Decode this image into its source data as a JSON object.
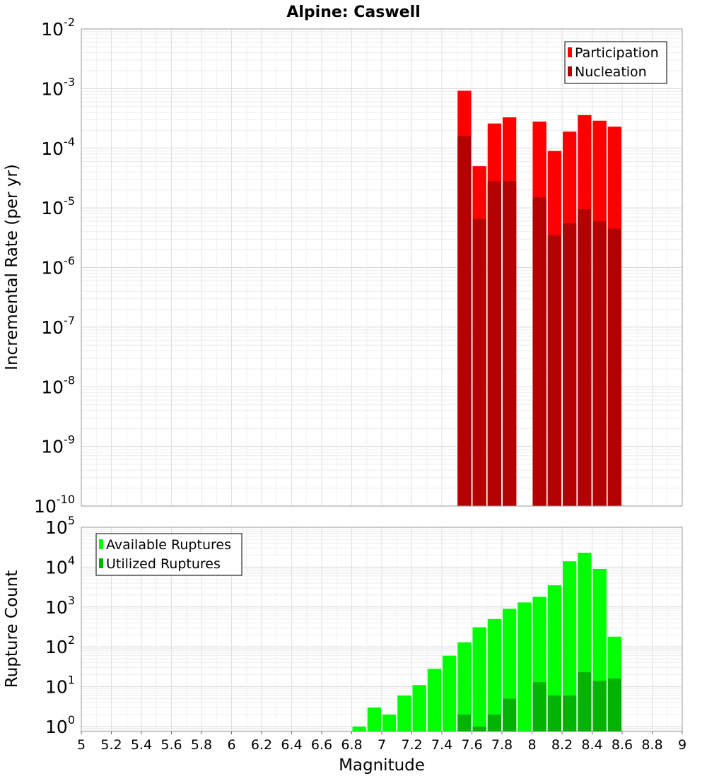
{
  "chart_data": [
    {
      "type": "bar",
      "title": "Alpine: Caswell",
      "ylabel": "Incremental Rate (per yr)",
      "xlabel": "",
      "y_scale": "log",
      "ylim": [
        1e-10,
        0.01
      ],
      "xlim": [
        5,
        9
      ],
      "bar_width": 0.1,
      "legend_position": "top-right",
      "y_ticks": [
        {
          "base": "10",
          "exp": "-10",
          "value": 1e-10
        },
        {
          "base": "10",
          "exp": "-9",
          "value": 1e-09
        },
        {
          "base": "10",
          "exp": "-8",
          "value": 1e-08
        },
        {
          "base": "10",
          "exp": "-7",
          "value": 1e-07
        },
        {
          "base": "10",
          "exp": "-6",
          "value": 1e-06
        },
        {
          "base": "10",
          "exp": "-5",
          "value": 1e-05
        },
        {
          "base": "10",
          "exp": "-4",
          "value": 0.0001
        },
        {
          "base": "10",
          "exp": "-3",
          "value": 0.001
        },
        {
          "base": "10",
          "exp": "-2",
          "value": 0.01
        }
      ],
      "series": [
        {
          "name": "Participation",
          "color": "#ff0000",
          "points": [
            {
              "x": 7.55,
              "y": 0.00092
            },
            {
              "x": 7.65,
              "y": 5e-05
            },
            {
              "x": 7.75,
              "y": 0.00026
            },
            {
              "x": 7.85,
              "y": 0.00033
            },
            {
              "x": 8.05,
              "y": 0.00028
            },
            {
              "x": 8.15,
              "y": 9e-05
            },
            {
              "x": 8.25,
              "y": 0.00019
            },
            {
              "x": 8.35,
              "y": 0.00036
            },
            {
              "x": 8.45,
              "y": 0.00029
            },
            {
              "x": 8.55,
              "y": 0.00023
            }
          ]
        },
        {
          "name": "Nucleation",
          "color": "#b30000",
          "points": [
            {
              "x": 7.55,
              "y": 0.00016
            },
            {
              "x": 7.65,
              "y": 6.5e-06
            },
            {
              "x": 7.75,
              "y": 2.8e-05
            },
            {
              "x": 7.85,
              "y": 2.8e-05
            },
            {
              "x": 8.05,
              "y": 1.5e-05
            },
            {
              "x": 8.15,
              "y": 3.5e-06
            },
            {
              "x": 8.25,
              "y": 5.5e-06
            },
            {
              "x": 8.35,
              "y": 9.5e-06
            },
            {
              "x": 8.45,
              "y": 6e-06
            },
            {
              "x": 8.55,
              "y": 4.5e-06
            }
          ]
        }
      ]
    },
    {
      "type": "bar",
      "title": "",
      "ylabel": "Rupture Count",
      "xlabel": "Magnitude",
      "y_scale": "log",
      "ylim": [
        0.75,
        100000
      ],
      "xlim": [
        5,
        9
      ],
      "bar_width": 0.1,
      "legend_position": "top-left",
      "x_ticks": [
        "5",
        "5.2",
        "5.4",
        "5.6",
        "5.8",
        "6",
        "6.2",
        "6.4",
        "6.6",
        "6.8",
        "7",
        "7.2",
        "7.4",
        "7.6",
        "7.8",
        "8",
        "8.2",
        "8.4",
        "8.6",
        "8.8",
        "9"
      ],
      "y_ticks": [
        {
          "base": "10",
          "exp": "0",
          "value": 1
        },
        {
          "base": "10",
          "exp": "1",
          "value": 10
        },
        {
          "base": "10",
          "exp": "2",
          "value": 100
        },
        {
          "base": "10",
          "exp": "3",
          "value": 1000
        },
        {
          "base": "10",
          "exp": "4",
          "value": 10000
        },
        {
          "base": "10",
          "exp": "5",
          "value": 100000
        }
      ],
      "series": [
        {
          "name": "Available Ruptures",
          "color": "#00ff00",
          "points": [
            {
              "x": 6.85,
              "y": 1
            },
            {
              "x": 6.95,
              "y": 3
            },
            {
              "x": 7.05,
              "y": 2
            },
            {
              "x": 7.15,
              "y": 6
            },
            {
              "x": 7.25,
              "y": 11
            },
            {
              "x": 7.35,
              "y": 28
            },
            {
              "x": 7.45,
              "y": 60
            },
            {
              "x": 7.55,
              "y": 130
            },
            {
              "x": 7.65,
              "y": 310
            },
            {
              "x": 7.75,
              "y": 500
            },
            {
              "x": 7.85,
              "y": 900
            },
            {
              "x": 7.95,
              "y": 1300
            },
            {
              "x": 8.05,
              "y": 1800
            },
            {
              "x": 8.15,
              "y": 3500
            },
            {
              "x": 8.25,
              "y": 14000
            },
            {
              "x": 8.35,
              "y": 23000
            },
            {
              "x": 8.45,
              "y": 9000
            },
            {
              "x": 8.55,
              "y": 180
            }
          ]
        },
        {
          "name": "Utilized Ruptures",
          "color": "#00b300",
          "points": [
            {
              "x": 7.55,
              "y": 2
            },
            {
              "x": 7.65,
              "y": 1
            },
            {
              "x": 7.75,
              "y": 2
            },
            {
              "x": 7.85,
              "y": 5
            },
            {
              "x": 8.05,
              "y": 13
            },
            {
              "x": 8.15,
              "y": 6
            },
            {
              "x": 8.25,
              "y": 6
            },
            {
              "x": 8.35,
              "y": 23
            },
            {
              "x": 8.45,
              "y": 14
            },
            {
              "x": 8.55,
              "y": 16
            }
          ]
        }
      ]
    }
  ]
}
